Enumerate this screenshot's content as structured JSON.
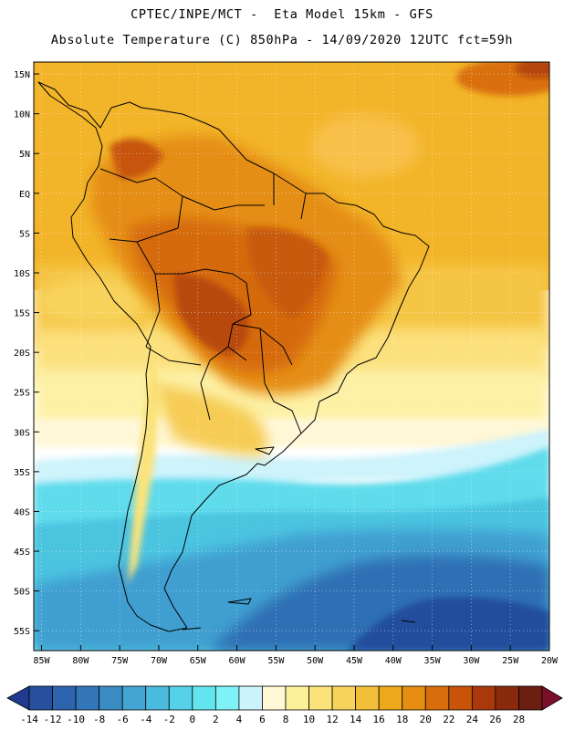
{
  "header": {
    "line1": "CPTEC/INPE/MCT -  Eta Model 15km - GFS",
    "line2": "Absolute Temperature (C) 850hPa - 14/09/2020 12UTC fct=59h"
  },
  "map": {
    "region": "South America",
    "lat_labels": [
      "15N",
      "10N",
      "5N",
      "EQ",
      "5S",
      "10S",
      "15S",
      "20S",
      "25S",
      "30S",
      "35S",
      "40S",
      "45S",
      "50S",
      "55S"
    ],
    "lon_labels": [
      "85W",
      "80W",
      "75W",
      "70W",
      "65W",
      "60W",
      "55W",
      "50W",
      "45W",
      "40W",
      "35W",
      "30W",
      "25W",
      "20W"
    ],
    "lat_values": [
      15,
      10,
      5,
      0,
      -5,
      -10,
      -15,
      -20,
      -25,
      -30,
      -35,
      -40,
      -45,
      -50,
      -55
    ],
    "lon_values": [
      -85,
      -80,
      -75,
      -70,
      -65,
      -60,
      -55,
      -50,
      -45,
      -40,
      -35,
      -30,
      -25,
      -20
    ],
    "lat_range": [
      -57.5,
      16.5
    ],
    "lon_range": [
      -86,
      -20
    ]
  },
  "colorbar": {
    "labels": [
      "-14",
      "-12",
      "-10",
      "-8",
      "-6",
      "-4",
      "-2",
      "0",
      "2",
      "4",
      "6",
      "8",
      "10",
      "12",
      "14",
      "16",
      "18",
      "20",
      "22",
      "24",
      "26",
      "28"
    ],
    "colors": [
      "#1f3a8f",
      "#26509e",
      "#2d64ad",
      "#3377b8",
      "#3b8cc4",
      "#45a5d2",
      "#4cbcde",
      "#55d2e8",
      "#63e5ef",
      "#7ff2f7",
      "#caf3fb",
      "#fff7d6",
      "#fdf09a",
      "#fbe37a",
      "#f8d35c",
      "#f2bf3b",
      "#eda81b",
      "#e58e12",
      "#d96d0c",
      "#c75409",
      "#a9390a",
      "#8a2a0c",
      "#6b1f10",
      "#7a0f2a"
    ]
  }
}
